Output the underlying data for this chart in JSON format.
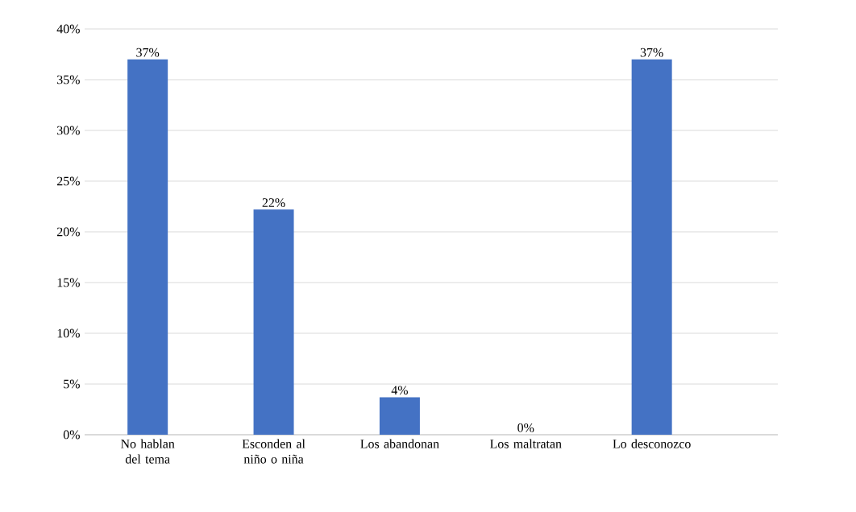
{
  "chart_data": {
    "type": "bar",
    "categories": [
      "No hablan del tema",
      "Esconden al niño o niña",
      "Los abandonan",
      "Los maltratan",
      "Lo desconozco"
    ],
    "values": [
      37,
      22.2,
      3.7,
      0,
      37
    ],
    "value_labels": [
      "37%",
      "22%",
      "4%",
      "0%",
      "37%"
    ],
    "color": "#4472c4",
    "ylim": [
      0,
      40
    ],
    "yticks": [
      {
        "value": 0,
        "label": "0%"
      },
      {
        "value": 5,
        "label": "5%"
      },
      {
        "value": 10,
        "label": "10%"
      },
      {
        "value": 15,
        "label": "15%"
      },
      {
        "value": 20,
        "label": "20%"
      },
      {
        "value": 25,
        "label": "25%"
      },
      {
        "value": 30,
        "label": "30%"
      },
      {
        "value": 35,
        "label": "35%"
      },
      {
        "value": 40,
        "label": "40%"
      }
    ],
    "grid": "y",
    "legend": false
  }
}
